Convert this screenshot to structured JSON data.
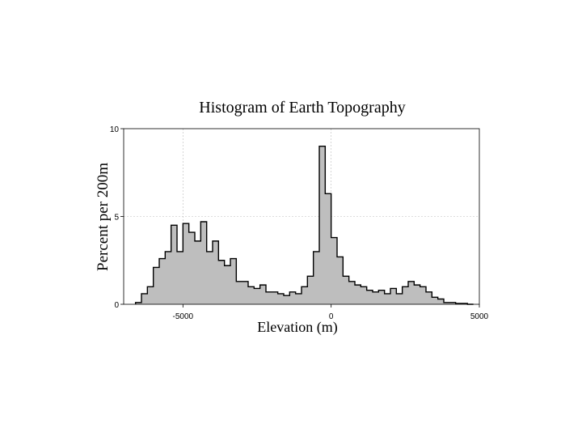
{
  "chart_data": {
    "type": "bar",
    "title": "Histogram of Earth Topography",
    "xlabel": "Elevation (m)",
    "ylabel": "Percent per 200m",
    "xlim": [
      -7000,
      5000
    ],
    "ylim": [
      0,
      10
    ],
    "xticks": [
      -5000,
      0,
      5000
    ],
    "xtick_labels": [
      "-5000",
      "0",
      "5000"
    ],
    "yticks": [
      0,
      5,
      10
    ],
    "ytick_labels": [
      "0",
      "5",
      "10"
    ],
    "grid": true,
    "bin_width": 200,
    "bins_start": [
      -6600,
      -6400,
      -6200,
      -6000,
      -5800,
      -5600,
      -5400,
      -5200,
      -5000,
      -4800,
      -4600,
      -4400,
      -4200,
      -4000,
      -3800,
      -3600,
      -3400,
      -3200,
      -3000,
      -2800,
      -2600,
      -2400,
      -2200,
      -2000,
      -1800,
      -1600,
      -1400,
      -1200,
      -1000,
      -800,
      -600,
      -400,
      -200,
      0,
      200,
      400,
      600,
      800,
      1000,
      1200,
      1400,
      1600,
      1800,
      2000,
      2200,
      2400,
      2600,
      2800,
      3000,
      3200,
      3400,
      3600,
      3800,
      4000,
      4200,
      4400,
      4600
    ],
    "values": [
      0.1,
      0.6,
      1.0,
      2.1,
      2.6,
      3.0,
      4.5,
      3.0,
      4.6,
      4.1,
      3.6,
      4.7,
      3.0,
      3.6,
      2.5,
      2.2,
      2.6,
      1.3,
      1.3,
      1.0,
      0.9,
      1.1,
      0.7,
      0.7,
      0.6,
      0.5,
      0.7,
      0.6,
      1.0,
      1.6,
      3.0,
      9.0,
      6.3,
      3.8,
      2.7,
      1.6,
      1.3,
      1.1,
      1.0,
      0.8,
      0.7,
      0.8,
      0.6,
      0.9,
      0.6,
      1.0,
      1.3,
      1.1,
      1.0,
      0.7,
      0.4,
      0.3,
      0.1,
      0.1,
      0.05,
      0.05,
      0.0
    ],
    "colors": {
      "fill": "#bebebe",
      "outline": "#000000"
    }
  }
}
